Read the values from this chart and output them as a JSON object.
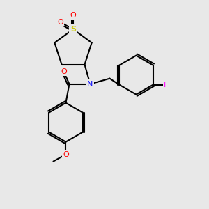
{
  "bg_color": "#e8e8e8",
  "bond_color": "#000000",
  "bond_width": 1.5,
  "atom_colors": {
    "S": "#cccc00",
    "O": "#ff0000",
    "N": "#0000ff",
    "F": "#ff00ff",
    "C": "#000000"
  }
}
